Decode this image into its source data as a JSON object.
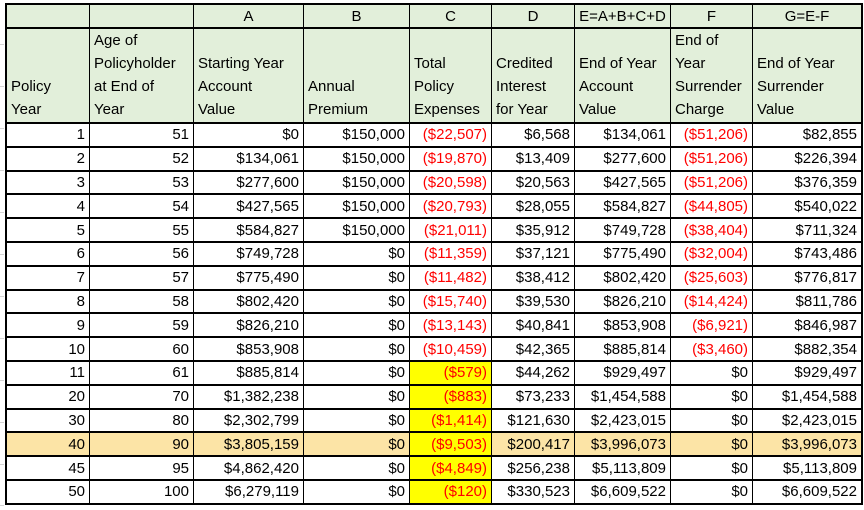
{
  "colors": {
    "header_bg": "#e2efda",
    "highlight_row_bg": "#fce4a6",
    "highlight_cell_bg": "#ffff00",
    "negative_text": "#ff0000",
    "border": "#000000",
    "text": "#000000",
    "gridline": "#d4d4d4"
  },
  "sheet": {
    "formula_labels": [
      "",
      "",
      "A",
      "B",
      "C",
      "D",
      "E=A+B+C+D",
      "F",
      "G=E-F"
    ],
    "column_headers": [
      "Policy\nYear",
      "Age of\nPolicyholder\nat End of\nYear",
      "Starting Year\nAccount\nValue",
      "Annual\nPremium",
      "Total\nPolicy\nExpenses",
      "Credited\nInterest\nfor Year",
      "End of Year\nAccount\nValue",
      "End of\nYear\nSurrender\nCharge",
      "End of Year\nSurrender\nValue"
    ],
    "rows": [
      {
        "values": [
          "1",
          "51",
          "$0",
          "$150,000",
          "($22,507)",
          "$6,568",
          "$134,061",
          "($51,206)",
          "$82,855"
        ],
        "expense_filled": false,
        "highlight": false
      },
      {
        "values": [
          "2",
          "52",
          "$134,061",
          "$150,000",
          "($19,870)",
          "$13,409",
          "$277,600",
          "($51,206)",
          "$226,394"
        ],
        "expense_filled": false,
        "highlight": false
      },
      {
        "values": [
          "3",
          "53",
          "$277,600",
          "$150,000",
          "($20,598)",
          "$20,563",
          "$427,565",
          "($51,206)",
          "$376,359"
        ],
        "expense_filled": false,
        "highlight": false
      },
      {
        "values": [
          "4",
          "54",
          "$427,565",
          "$150,000",
          "($20,793)",
          "$28,055",
          "$584,827",
          "($44,805)",
          "$540,022"
        ],
        "expense_filled": false,
        "highlight": false
      },
      {
        "values": [
          "5",
          "55",
          "$584,827",
          "$150,000",
          "($21,011)",
          "$35,912",
          "$749,728",
          "($38,404)",
          "$711,324"
        ],
        "expense_filled": false,
        "highlight": false
      },
      {
        "values": [
          "6",
          "56",
          "$749,728",
          "$0",
          "($11,359)",
          "$37,121",
          "$775,490",
          "($32,004)",
          "$743,486"
        ],
        "expense_filled": false,
        "highlight": false
      },
      {
        "values": [
          "7",
          "57",
          "$775,490",
          "$0",
          "($11,482)",
          "$38,412",
          "$802,420",
          "($25,603)",
          "$776,817"
        ],
        "expense_filled": false,
        "highlight": false
      },
      {
        "values": [
          "8",
          "58",
          "$802,420",
          "$0",
          "($15,740)",
          "$39,530",
          "$826,210",
          "($14,424)",
          "$811,786"
        ],
        "expense_filled": false,
        "highlight": false
      },
      {
        "values": [
          "9",
          "59",
          "$826,210",
          "$0",
          "($13,143)",
          "$40,841",
          "$853,908",
          "($6,921)",
          "$846,987"
        ],
        "expense_filled": false,
        "highlight": false
      },
      {
        "values": [
          "10",
          "60",
          "$853,908",
          "$0",
          "($10,459)",
          "$42,365",
          "$885,814",
          "($3,460)",
          "$882,354"
        ],
        "expense_filled": false,
        "highlight": false
      },
      {
        "values": [
          "11",
          "61",
          "$885,814",
          "$0",
          "($579)",
          "$44,262",
          "$929,497",
          "$0",
          "$929,497"
        ],
        "expense_filled": true,
        "highlight": false
      },
      {
        "values": [
          "20",
          "70",
          "$1,382,238",
          "$0",
          "($883)",
          "$73,233",
          "$1,454,588",
          "$0",
          "$1,454,588"
        ],
        "expense_filled": true,
        "highlight": false
      },
      {
        "values": [
          "30",
          "80",
          "$2,302,799",
          "$0",
          "($1,414)",
          "$121,630",
          "$2,423,015",
          "$0",
          "$2,423,015"
        ],
        "expense_filled": true,
        "highlight": false
      },
      {
        "values": [
          "40",
          "90",
          "$3,805,159",
          "$0",
          "($9,503)",
          "$200,417",
          "$3,996,073",
          "$0",
          "$3,996,073"
        ],
        "expense_filled": true,
        "highlight": true
      },
      {
        "values": [
          "45",
          "95",
          "$4,862,420",
          "$0",
          "($4,849)",
          "$256,238",
          "$5,113,809",
          "$0",
          "$5,113,809"
        ],
        "expense_filled": true,
        "highlight": false
      },
      {
        "values": [
          "50",
          "100",
          "$6,279,119",
          "$0",
          "($120)",
          "$330,523",
          "$6,609,522",
          "$0",
          "$6,609,522"
        ],
        "expense_filled": true,
        "highlight": false
      }
    ]
  }
}
